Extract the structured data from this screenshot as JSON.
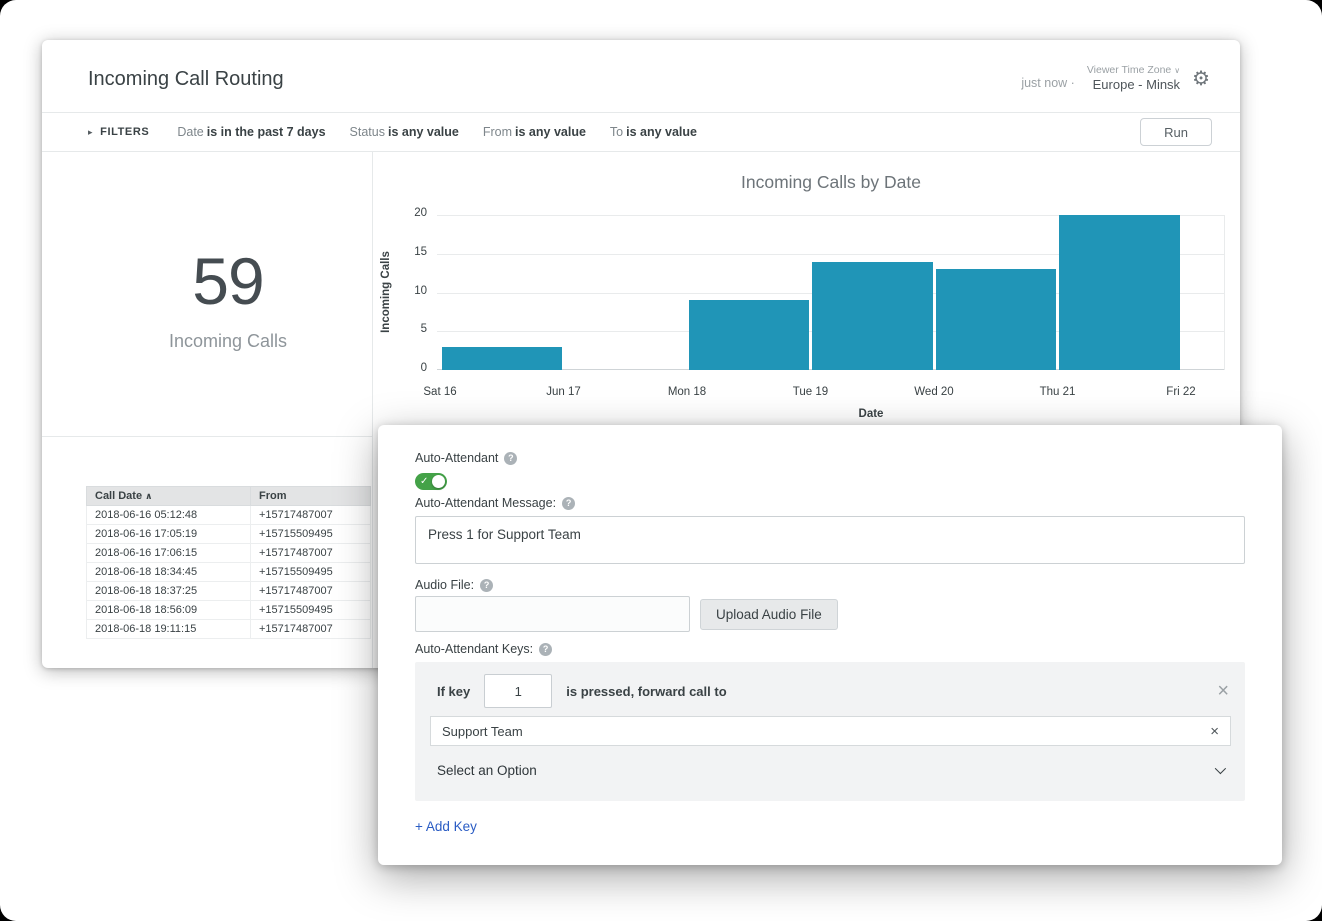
{
  "page": {
    "title": "Incoming Call Routing",
    "updated": "just now",
    "separator": "·",
    "timezone_label": "Viewer Time Zone",
    "timezone_value": "Europe - Minsk"
  },
  "colors": {
    "toggle_on": "#44a248",
    "link": "#2a5cc4"
  },
  "icons": {
    "gear": "⚙",
    "filters_triangle": "▸",
    "sort_asc": "∧",
    "timezone_chevron": "∨",
    "toggle_check": "✓",
    "close": "×",
    "clear": "×",
    "help": "?"
  },
  "filters": {
    "label": "FILTERS",
    "items": [
      {
        "field": "Date",
        "condition": "is in the past 7 days"
      },
      {
        "field": "Status",
        "condition": "is any value"
      },
      {
        "field": "From",
        "condition": "is any value"
      },
      {
        "field": "To",
        "condition": "is any value"
      }
    ],
    "run_label": "Run"
  },
  "kpi": {
    "value": "59",
    "label": "Incoming Calls"
  },
  "chart_data": {
    "type": "bar",
    "title": "Incoming Calls by Date",
    "xlabel": "Date",
    "ylabel": "Incoming Calls",
    "categories": [
      "Sat 16",
      "Jun 17",
      "Mon 18",
      "Tue 19",
      "Wed 20",
      "Thu 21",
      "Fri 22"
    ],
    "values": [
      3,
      0,
      9,
      14,
      13,
      20,
      0
    ],
    "yticks": [
      0,
      5,
      10,
      15,
      20
    ],
    "ylim": [
      0,
      20
    ],
    "bar_color": "#2095b7",
    "grid": true,
    "legend": "none"
  },
  "table": {
    "columns": [
      "Call Date",
      "From"
    ],
    "rows": [
      [
        "2018-06-16 05:12:48",
        "+15717487007"
      ],
      [
        "2018-06-16 17:05:19",
        "+15715509495"
      ],
      [
        "2018-06-16 17:06:15",
        "+15717487007"
      ],
      [
        "2018-06-18 18:34:45",
        "+15715509495"
      ],
      [
        "2018-06-18 18:37:25",
        "+15717487007"
      ],
      [
        "2018-06-18 18:56:09",
        "+15715509495"
      ],
      [
        "2018-06-18 19:11:15",
        "+15717487007"
      ]
    ]
  },
  "panel": {
    "auto_attendant_label": "Auto-Attendant",
    "message_label": "Auto-Attendant Message:",
    "message_value": "Press 1 for Support Team",
    "audio_file_label": "Audio File:",
    "audio_file_value": "",
    "upload_button": "Upload Audio File",
    "keys_label": "Auto-Attendant Keys:",
    "key_rule": {
      "prefix": "If key",
      "key_value": "1",
      "suffix": "is pressed, forward call to",
      "target": "Support Team",
      "option_placeholder": "Select an Option"
    },
    "add_key_label": "+ Add Key"
  }
}
